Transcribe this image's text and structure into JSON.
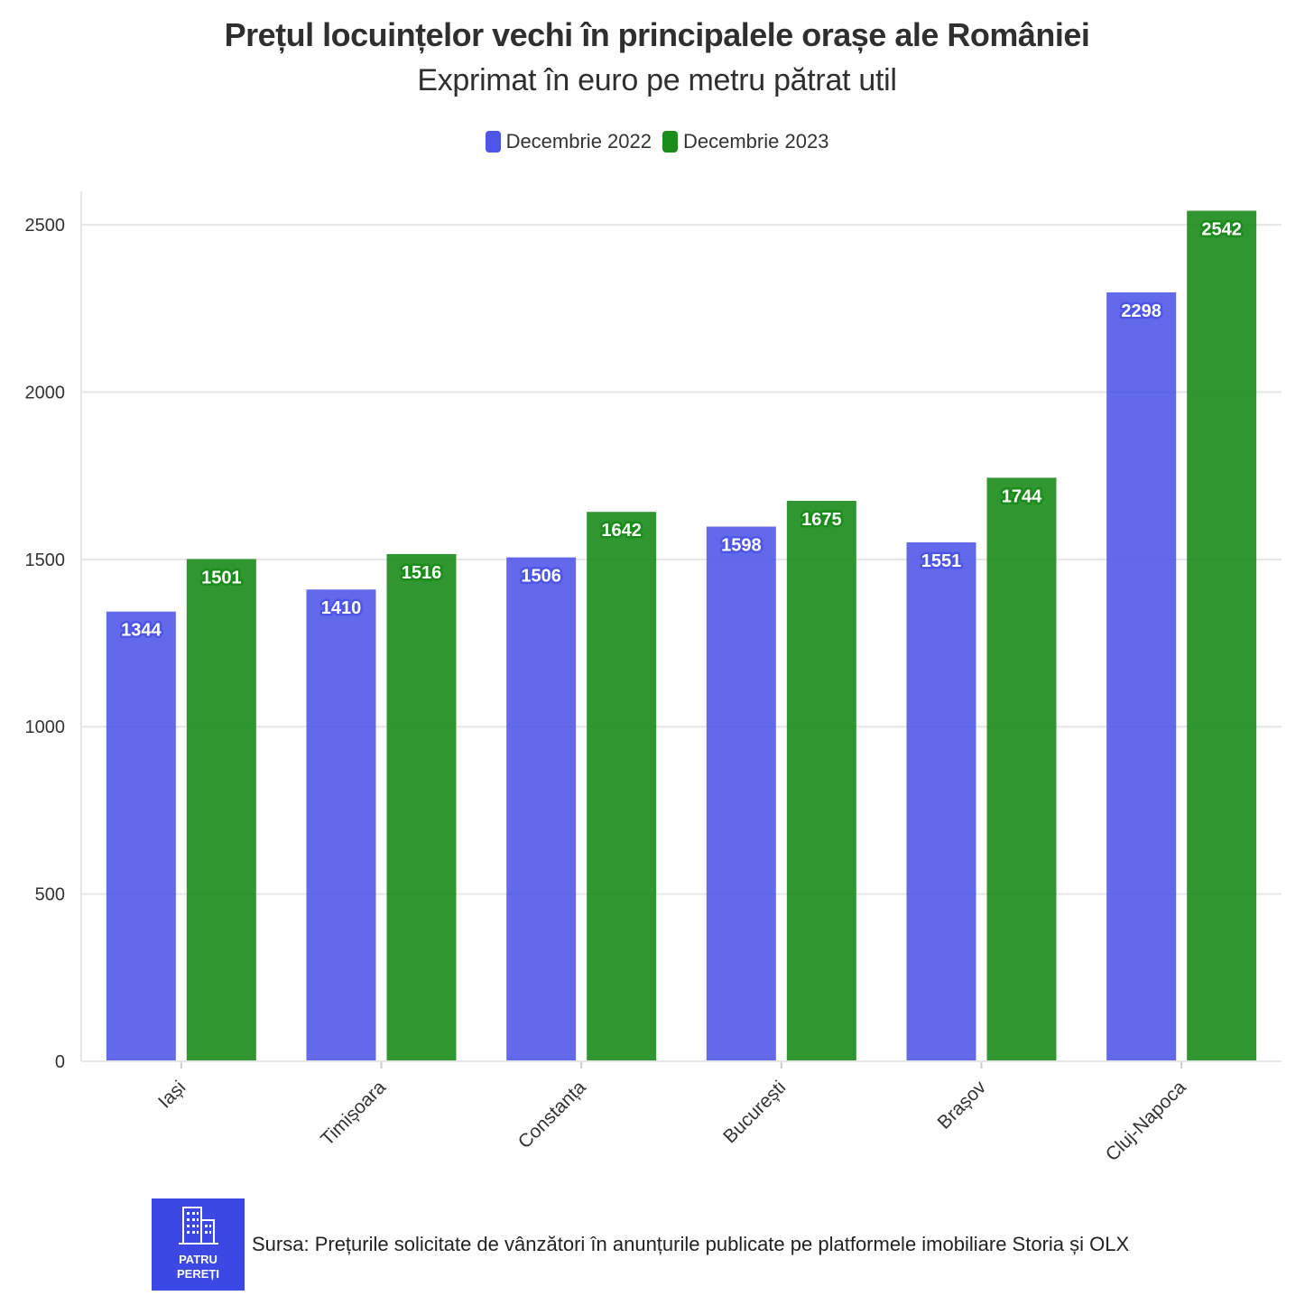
{
  "chart_data": {
    "type": "bar",
    "title": "Prețul locuințelor vechi în principalele orașe ale României",
    "subtitle": "Exprimat în euro pe metru pătrat util",
    "categories": [
      "Iași",
      "Timișoara",
      "Constanța",
      "București",
      "Brașov",
      "Cluj-Napoca"
    ],
    "series": [
      {
        "name": "Decembrie 2022",
        "color": "#4c55e8",
        "values": [
          1344,
          1410,
          1506,
          1598,
          1551,
          2298
        ]
      },
      {
        "name": "Decembrie 2023",
        "color": "#1a8c1a",
        "values": [
          1501,
          1516,
          1642,
          1675,
          1744,
          2542
        ]
      }
    ],
    "ylim": [
      0,
      2600
    ],
    "yticks": [
      0,
      500,
      1000,
      1500,
      2000,
      2500
    ],
    "xlabel": "",
    "ylabel": "",
    "grid": true,
    "legend": "top-center"
  },
  "footer": {
    "source": "Sursa: Prețurile solicitate de vânzători în anunțurile publicate pe platformele imobiliare Storia și OLX",
    "logo_line1": "PATRU",
    "logo_line2": "PEREȚI"
  }
}
